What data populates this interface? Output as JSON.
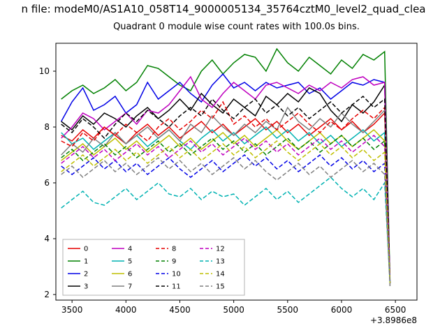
{
  "figure": {
    "suptitle": "n file: modeM0/AS1A10_058T14_9000005134_35764cztM0_level2_quad_clea"
  },
  "chart_data": {
    "type": "line",
    "title": "Quadrant 0 module wise count rates with 100.0s bins.",
    "suptitle": "n file: modeM0/AS1A10_058T14_9000005134_35764cztM0_level2_quad_clea",
    "xlabel": "",
    "ylabel": "",
    "x_offset_label": "+3.8986e8",
    "xlim": [
      3350,
      6700
    ],
    "ylim": [
      1.8,
      11.0
    ],
    "xticks": [
      3500,
      4000,
      4500,
      5000,
      5500,
      6000,
      6500
    ],
    "yticks": [
      2,
      4,
      6,
      8,
      10
    ],
    "grid": false,
    "legend_position": "lower left",
    "legend_columns": 4,
    "x": [
      3400,
      3500,
      3600,
      3700,
      3800,
      3900,
      4000,
      4100,
      4200,
      4300,
      4400,
      4500,
      4600,
      4700,
      4800,
      4900,
      5000,
      5100,
      5200,
      5300,
      5400,
      5500,
      5600,
      5700,
      5800,
      5900,
      6000,
      6100,
      6200,
      6300,
      6400,
      6450
    ],
    "series": [
      {
        "name": "0",
        "color": "#e50000",
        "dash": false,
        "values": [
          7.7,
          7.5,
          7.9,
          7.6,
          8.0,
          7.7,
          7.4,
          7.8,
          8.1,
          7.7,
          8.0,
          7.6,
          7.9,
          8.2,
          7.8,
          8.1,
          7.7,
          8.0,
          8.3,
          7.9,
          8.2,
          7.8,
          8.1,
          7.7,
          8.0,
          8.3,
          7.9,
          8.2,
          7.8,
          8.1,
          8.5,
          2.4
        ]
      },
      {
        "name": "1",
        "color": "#008000",
        "dash": false,
        "values": [
          9.0,
          9.3,
          9.5,
          9.2,
          9.4,
          9.7,
          9.3,
          9.6,
          10.2,
          10.1,
          9.8,
          9.5,
          9.3,
          10.0,
          10.4,
          9.9,
          10.3,
          10.6,
          10.5,
          10.0,
          10.8,
          10.3,
          10.0,
          10.5,
          10.2,
          9.9,
          10.4,
          10.1,
          10.6,
          10.4,
          10.7,
          2.5
        ]
      },
      {
        "name": "2",
        "color": "#0000e6",
        "dash": false,
        "values": [
          8.2,
          8.9,
          9.4,
          8.6,
          8.8,
          9.1,
          8.5,
          8.8,
          9.6,
          9.0,
          9.3,
          9.6,
          9.2,
          8.9,
          9.5,
          9.9,
          9.4,
          9.6,
          9.3,
          9.6,
          9.4,
          9.5,
          9.6,
          9.2,
          9.4,
          9.0,
          9.3,
          9.6,
          9.5,
          9.7,
          9.6,
          2.4
        ]
      },
      {
        "name": "3",
        "color": "#000000",
        "dash": false,
        "values": [
          8.2,
          7.9,
          8.4,
          8.1,
          8.5,
          8.3,
          8.0,
          8.4,
          8.7,
          8.3,
          8.6,
          9.0,
          8.6,
          9.2,
          8.8,
          8.5,
          9.0,
          8.7,
          8.4,
          9.1,
          8.8,
          9.2,
          8.9,
          9.4,
          9.2,
          8.6,
          8.2,
          8.8,
          8.5,
          8.9,
          9.5,
          2.4
        ]
      },
      {
        "name": "4",
        "color": "#bf00bf",
        "dash": false,
        "values": [
          7.6,
          8.0,
          8.5,
          8.3,
          7.9,
          8.2,
          8.5,
          8.1,
          8.6,
          8.5,
          8.8,
          9.3,
          9.8,
          9.0,
          8.7,
          9.2,
          9.6,
          9.3,
          9.0,
          9.5,
          9.6,
          9.4,
          9.2,
          9.5,
          9.3,
          9.6,
          9.4,
          9.7,
          9.8,
          9.5,
          9.6,
          2.4
        ]
      },
      {
        "name": "5",
        "color": "#00b2b2",
        "dash": false,
        "values": [
          7.8,
          7.4,
          7.6,
          7.2,
          7.5,
          7.8,
          7.4,
          7.7,
          7.3,
          7.6,
          7.9,
          7.5,
          7.2,
          7.6,
          7.9,
          7.5,
          7.8,
          7.4,
          7.7,
          8.0,
          7.6,
          7.9,
          7.5,
          7.8,
          7.4,
          7.7,
          7.3,
          7.6,
          7.9,
          7.5,
          7.8,
          2.4
        ]
      },
      {
        "name": "6",
        "color": "#bfbf00",
        "dash": false,
        "values": [
          6.8,
          7.1,
          7.4,
          7.0,
          7.3,
          7.6,
          7.2,
          7.5,
          7.1,
          7.4,
          7.7,
          7.3,
          7.6,
          7.2,
          7.5,
          7.8,
          7.4,
          7.7,
          7.3,
          7.6,
          7.9,
          7.5,
          7.2,
          7.5,
          7.8,
          7.4,
          7.7,
          7.3,
          7.6,
          7.9,
          7.5,
          2.4
        ]
      },
      {
        "name": "7",
        "color": "#7f7f7f",
        "dash": false,
        "values": [
          7.0,
          7.4,
          7.1,
          7.6,
          7.3,
          7.8,
          7.4,
          7.7,
          8.0,
          7.6,
          7.9,
          7.5,
          8.1,
          7.8,
          8.4,
          8.0,
          7.7,
          8.1,
          7.8,
          8.2,
          7.9,
          8.7,
          8.2,
          7.9,
          8.3,
          8.0,
          8.5,
          8.1,
          7.8,
          8.2,
          8.6,
          2.4
        ]
      },
      {
        "name": "8",
        "color": "#e50000",
        "dash": true,
        "values": [
          7.5,
          7.3,
          7.8,
          7.5,
          8.0,
          7.7,
          8.1,
          7.8,
          7.5,
          8.0,
          8.3,
          7.9,
          8.2,
          8.6,
          8.3,
          8.9,
          8.1,
          8.4,
          8.0,
          8.3,
          7.9,
          8.2,
          8.5,
          8.1,
          7.8,
          8.2,
          7.9,
          8.3,
          8.6,
          8.3,
          8.7,
          2.4
        ]
      },
      {
        "name": "9",
        "color": "#008000",
        "dash": true,
        "values": [
          6.9,
          7.2,
          6.8,
          7.1,
          7.4,
          7.0,
          7.3,
          6.9,
          7.2,
          7.5,
          7.1,
          7.4,
          7.0,
          7.3,
          7.6,
          7.2,
          7.5,
          7.1,
          7.4,
          7.0,
          7.3,
          7.6,
          7.2,
          7.5,
          7.1,
          7.4,
          7.7,
          7.3,
          7.6,
          7.2,
          7.5,
          2.4
        ]
      },
      {
        "name": "10",
        "color": "#0000e6",
        "dash": true,
        "values": [
          6.6,
          6.3,
          6.6,
          6.9,
          6.5,
          6.8,
          6.4,
          6.7,
          6.3,
          6.6,
          6.9,
          6.5,
          6.2,
          6.5,
          6.8,
          6.4,
          6.7,
          7.0,
          6.6,
          6.9,
          6.5,
          6.8,
          6.4,
          6.7,
          7.0,
          6.6,
          6.9,
          6.5,
          6.8,
          6.4,
          6.7,
          2.4
        ]
      },
      {
        "name": "11",
        "color": "#000000",
        "dash": true,
        "values": [
          8.1,
          7.8,
          8.3,
          8.0,
          7.6,
          8.1,
          8.5,
          8.2,
          8.6,
          8.3,
          8.0,
          8.4,
          8.7,
          8.4,
          9.0,
          8.6,
          8.3,
          8.7,
          9.0,
          8.5,
          8.8,
          8.4,
          8.7,
          8.3,
          8.6,
          8.9,
          8.5,
          8.8,
          9.1,
          8.7,
          9.0,
          2.3
        ]
      },
      {
        "name": "12",
        "color": "#bf00bf",
        "dash": true,
        "values": [
          6.7,
          7.0,
          7.3,
          6.9,
          7.2,
          6.8,
          7.1,
          7.4,
          7.0,
          7.3,
          6.9,
          7.2,
          7.5,
          7.1,
          7.4,
          7.0,
          7.3,
          7.6,
          7.2,
          7.5,
          7.1,
          7.4,
          7.0,
          7.3,
          7.6,
          7.2,
          7.5,
          7.1,
          7.4,
          7.7,
          7.3,
          2.4
        ]
      },
      {
        "name": "13",
        "color": "#00b2b2",
        "dash": true,
        "values": [
          5.1,
          5.4,
          5.7,
          5.3,
          5.2,
          5.5,
          5.8,
          5.4,
          5.7,
          6.0,
          5.6,
          5.5,
          5.8,
          5.4,
          5.7,
          5.5,
          5.6,
          5.2,
          5.5,
          5.8,
          5.4,
          5.7,
          5.3,
          5.6,
          5.9,
          6.2,
          5.8,
          5.5,
          5.8,
          5.4,
          6.0,
          2.4
        ]
      },
      {
        "name": "14",
        "color": "#bfbf00",
        "dash": true,
        "values": [
          6.4,
          6.7,
          7.0,
          6.6,
          6.9,
          7.2,
          6.8,
          7.1,
          6.7,
          7.0,
          7.3,
          6.9,
          7.2,
          6.8,
          7.1,
          7.4,
          7.0,
          7.3,
          6.9,
          7.2,
          7.5,
          7.1,
          6.8,
          7.1,
          7.4,
          7.0,
          7.3,
          6.9,
          7.2,
          6.8,
          7.1,
          2.4
        ]
      },
      {
        "name": "15",
        "color": "#7f7f7f",
        "dash": true,
        "values": [
          6.3,
          6.6,
          6.2,
          6.5,
          6.8,
          6.4,
          6.7,
          6.3,
          6.6,
          6.9,
          6.5,
          6.8,
          6.4,
          6.7,
          6.3,
          6.6,
          6.9,
          6.5,
          6.8,
          6.4,
          6.1,
          6.4,
          6.7,
          6.3,
          6.6,
          6.2,
          6.5,
          6.8,
          6.4,
          6.7,
          6.3,
          2.3
        ]
      }
    ]
  }
}
